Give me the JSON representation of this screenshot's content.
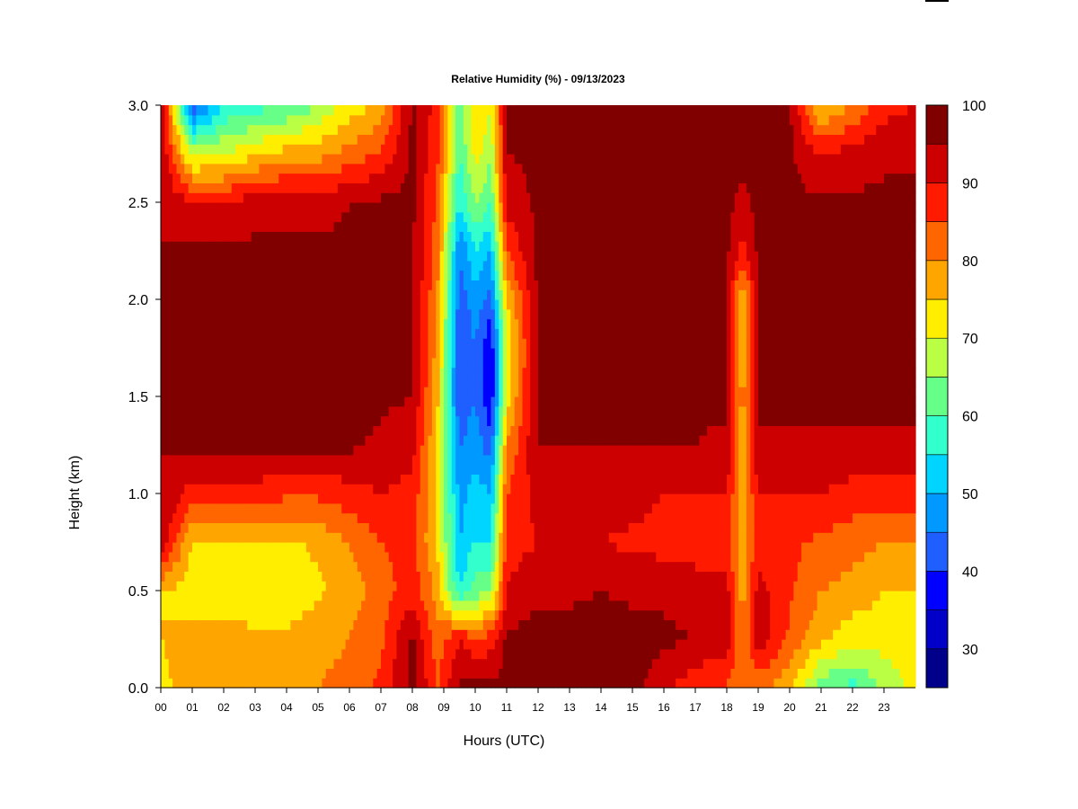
{
  "chart_data": {
    "type": "heatmap",
    "title": "Relative Humidity (%) - 09/13/2023",
    "xlabel": "Hours (UTC)",
    "ylabel": "Height (km)",
    "x_ticks": [
      "00",
      "01",
      "02",
      "03",
      "04",
      "05",
      "06",
      "07",
      "08",
      "09",
      "10",
      "11",
      "12",
      "13",
      "14",
      "15",
      "16",
      "17",
      "18",
      "19",
      "20",
      "21",
      "22",
      "23"
    ],
    "y_ticks": [
      "0.0",
      "0.5",
      "1.0",
      "1.5",
      "2.0",
      "2.5",
      "3.0"
    ],
    "xlim": [
      0,
      24
    ],
    "ylim": [
      0,
      3.0
    ],
    "grid": false,
    "legend": "right (colorbar)",
    "colorbar": {
      "ticks": [
        "30",
        "40",
        "50",
        "60",
        "70",
        "80",
        "90",
        "100"
      ],
      "range": [
        25,
        100
      ],
      "levels": [
        {
          "from": 25,
          "to": 30,
          "color": "#00008b"
        },
        {
          "from": 30,
          "to": 35,
          "color": "#0000c8"
        },
        {
          "from": 35,
          "to": 40,
          "color": "#0000ff"
        },
        {
          "from": 40,
          "to": 45,
          "color": "#1f5fff"
        },
        {
          "from": 45,
          "to": 50,
          "color": "#0099ff"
        },
        {
          "from": 50,
          "to": 55,
          "color": "#00d5ff"
        },
        {
          "from": 55,
          "to": 60,
          "color": "#33ffcc"
        },
        {
          "from": 60,
          "to": 65,
          "color": "#66ff88"
        },
        {
          "from": 65,
          "to": 70,
          "color": "#bbff44"
        },
        {
          "from": 70,
          "to": 75,
          "color": "#ffee00"
        },
        {
          "from": 75,
          "to": 80,
          "color": "#ffa500"
        },
        {
          "from": 80,
          "to": 85,
          "color": "#ff6600"
        },
        {
          "from": 85,
          "to": 90,
          "color": "#ff1a00"
        },
        {
          "from": 90,
          "to": 95,
          "color": "#cc0000"
        },
        {
          "from": 95,
          "to": 100,
          "color": "#800000"
        }
      ]
    },
    "heights_km": [
      0.0,
      0.25,
      0.5,
      0.75,
      1.0,
      1.25,
      1.5,
      1.75,
      2.0,
      2.25,
      2.5,
      2.75,
      3.0
    ],
    "hours": [
      0,
      1,
      2,
      3,
      4,
      5,
      6,
      7,
      8,
      8.8,
      9.5,
      10,
      10.5,
      11,
      12,
      13,
      14,
      15,
      16,
      17,
      18,
      18.5,
      19,
      20,
      21,
      22,
      23,
      24
    ],
    "rh_percent": [
      [
        74,
        75,
        75,
        95,
        95,
        95,
        95,
        95,
        95,
        95,
        95,
        95,
        95
      ],
      [
        77,
        76,
        73,
        74,
        88,
        96,
        96,
        96,
        96,
        96,
        90,
        68,
        40
      ],
      [
        77,
        77,
        73,
        75,
        88,
        96,
        96,
        96,
        96,
        96,
        90,
        70,
        55
      ],
      [
        79,
        76,
        72,
        74,
        88,
        96,
        96,
        96,
        96,
        96,
        93,
        74,
        58
      ],
      [
        79,
        76,
        72,
        74,
        86,
        96,
        96,
        96,
        96,
        96,
        94,
        77,
        60
      ],
      [
        80,
        78,
        74,
        76,
        86,
        96,
        96,
        96,
        96,
        96,
        93,
        78,
        65
      ],
      [
        82,
        80,
        78,
        80,
        88,
        96,
        96,
        96,
        96,
        96,
        95,
        82,
        72
      ],
      [
        86,
        84,
        82,
        85,
        90,
        94,
        96,
        96,
        96,
        96,
        96,
        86,
        76
      ],
      [
        97,
        96,
        88,
        87,
        88,
        92,
        95,
        96,
        96,
        96,
        96,
        96,
        96
      ],
      [
        85,
        82,
        78,
        74,
        74,
        74,
        76,
        78,
        80,
        82,
        84,
        86,
        88
      ],
      [
        96,
        90,
        55,
        50,
        48,
        45,
        40,
        40,
        42,
        45,
        55,
        60,
        62
      ],
      [
        96,
        86,
        62,
        55,
        52,
        48,
        45,
        45,
        48,
        55,
        65,
        72,
        75
      ],
      [
        96,
        88,
        65,
        55,
        50,
        42,
        35,
        35,
        42,
        50,
        60,
        66,
        70
      ],
      [
        97,
        96,
        90,
        88,
        85,
        80,
        72,
        70,
        75,
        85,
        92,
        95,
        95
      ],
      [
        97,
        97,
        94,
        90,
        92,
        95,
        96,
        96,
        96,
        96,
        96,
        96,
        96
      ],
      [
        97,
        97,
        94,
        90,
        91,
        95,
        96,
        96,
        96,
        96,
        96,
        96,
        96
      ],
      [
        97,
        97,
        95,
        90,
        92,
        95,
        96,
        96,
        96,
        96,
        96,
        96,
        96
      ],
      [
        97,
        97,
        94,
        89,
        92,
        95,
        96,
        96,
        96,
        96,
        96,
        96,
        96
      ],
      [
        92,
        96,
        94,
        88,
        90,
        95,
        96,
        96,
        96,
        96,
        96,
        96,
        96
      ],
      [
        86,
        95,
        93,
        87,
        90,
        95,
        96,
        96,
        96,
        96,
        96,
        96,
        96
      ],
      [
        84,
        93,
        92,
        87,
        90,
        94,
        96,
        96,
        96,
        96,
        96,
        96,
        96
      ],
      [
        80,
        80,
        78,
        76,
        76,
        76,
        78,
        76,
        74,
        88,
        94,
        96,
        96
      ],
      [
        82,
        93,
        92,
        88,
        90,
        94,
        96,
        96,
        96,
        96,
        96,
        96,
        96
      ],
      [
        76,
        84,
        86,
        86,
        90,
        94,
        96,
        96,
        96,
        96,
        96,
        96,
        96
      ],
      [
        62,
        76,
        80,
        84,
        90,
        94,
        96,
        96,
        96,
        96,
        96,
        90,
        74
      ],
      [
        58,
        72,
        78,
        82,
        88,
        94,
        96,
        96,
        96,
        96,
        96,
        92,
        80
      ],
      [
        66,
        72,
        75,
        80,
        88,
        94,
        96,
        96,
        96,
        96,
        96,
        94,
        88
      ],
      [
        72,
        74,
        75,
        80,
        88,
        94,
        96,
        96,
        96,
        96,
        96,
        94,
        90
      ]
    ]
  }
}
